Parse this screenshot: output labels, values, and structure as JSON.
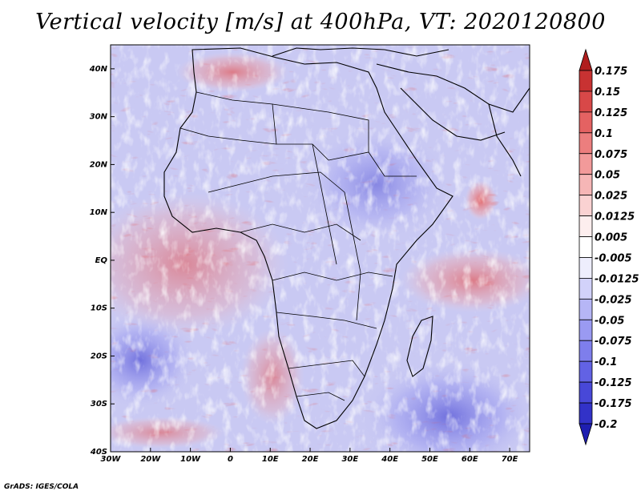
{
  "title": "Vertical velocity [m/s] at 400hPa, VT: 2020120800",
  "credit": "GrADS: IGES/COLA",
  "map": {
    "lon_range": [
      -30,
      75
    ],
    "lat_range": [
      -40,
      45
    ],
    "x_ticks": [
      "30W",
      "20W",
      "10W",
      "0",
      "10E",
      "20E",
      "30E",
      "40E",
      "50E",
      "60E",
      "70E"
    ],
    "y_ticks": [
      "40N",
      "30N",
      "20N",
      "10N",
      "EQ",
      "10S",
      "20S",
      "30S",
      "40S"
    ],
    "field": "vertical velocity",
    "level": "400hPa",
    "valid_time": "2020120800"
  },
  "colorbar": {
    "labels": [
      "0.175",
      "0.15",
      "0.125",
      "0.1",
      "0.075",
      "0.05",
      "0.025",
      "0.0125",
      "0.005",
      "-0.005",
      "-0.0125",
      "-0.025",
      "-0.05",
      "-0.075",
      "-0.1",
      "-0.125",
      "-0.175",
      "-0.2"
    ],
    "colors": [
      "#b01e1e",
      "#c83232",
      "#d84848",
      "#e46262",
      "#ec7e7e",
      "#f29a9a",
      "#f6b6b6",
      "#fad2d2",
      "#fdeeee",
      "#ffffff",
      "#eeeefd",
      "#d2d2fa",
      "#b6b6f6",
      "#9a9af2",
      "#7e7eec",
      "#6262e4",
      "#4848d8",
      "#3232c8",
      "#1e1eb0"
    ]
  }
}
